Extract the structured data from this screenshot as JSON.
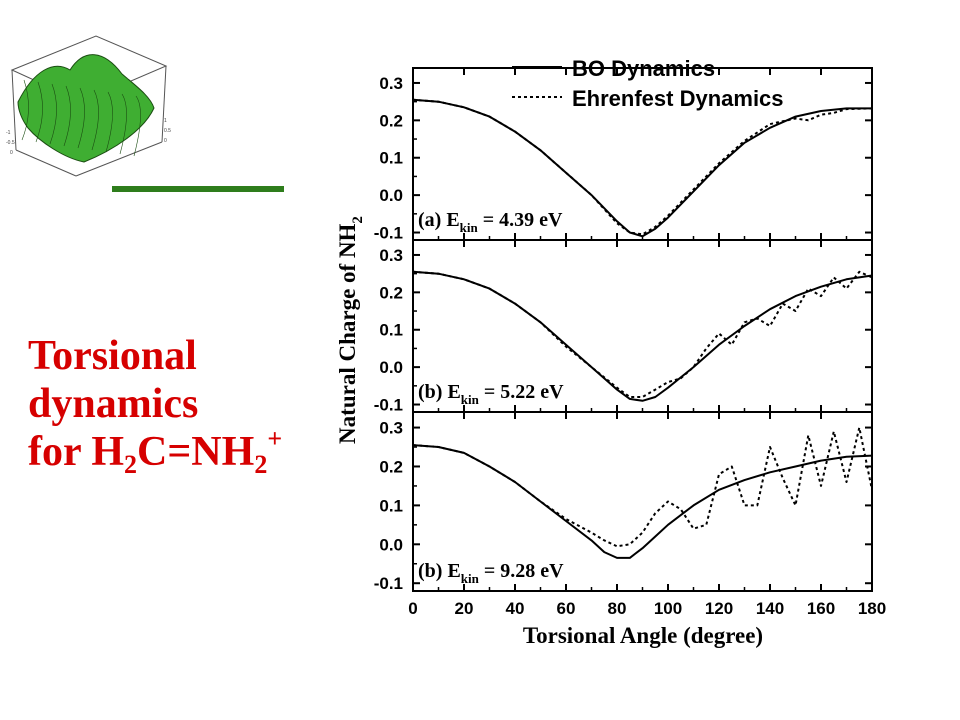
{
  "slide": {
    "title_line1": "Torsional",
    "title_line2": "dynamics",
    "title_line3_prefix": "for H",
    "title_sub1": "2",
    "title_mid": "C=NH",
    "title_sub2": "2",
    "title_sup": "+",
    "accent_color": "#d60000",
    "bar_color": "#2e7d1c",
    "surface_color": "#3fae32"
  },
  "chart_data": {
    "type": "line",
    "x_label": "Torsional Angle (degree)",
    "y_label_main": "Natural Charge of NH",
    "y_label_sub": "2",
    "x_ticks": [
      "0",
      "20",
      "40",
      "60",
      "80",
      "100",
      "120",
      "140",
      "160",
      "180"
    ],
    "y_ticks": [
      "0.3",
      "0.2",
      "0.1",
      "0.0",
      "-0.1"
    ],
    "xlim": [
      0,
      180
    ],
    "ylim": [
      -0.12,
      0.34
    ],
    "legend": {
      "position": "top",
      "entries": [
        {
          "label": "BO Dynamics",
          "style": "solid"
        },
        {
          "label": "Ehrenfest Dynamics",
          "style": "dotted"
        }
      ]
    },
    "panels": [
      {
        "label_prefix": "(a) E",
        "label_sub": "kin",
        "label_value": "= 4.39 eV",
        "series": [
          {
            "name": "BO Dynamics",
            "style": "solid",
            "x": [
              0,
              10,
              20,
              30,
              40,
              50,
              60,
              70,
              80,
              85,
              90,
              95,
              100,
              110,
              120,
              130,
              140,
              150,
              160,
              170,
              180
            ],
            "y": [
              0.255,
              0.25,
              0.235,
              0.21,
              0.17,
              0.12,
              0.06,
              0.0,
              -0.07,
              -0.1,
              -0.11,
              -0.09,
              -0.06,
              0.01,
              0.08,
              0.14,
              0.18,
              0.21,
              0.225,
              0.232,
              0.232
            ]
          },
          {
            "name": "Ehrenfest Dynamics",
            "style": "dotted",
            "x": [
              0,
              10,
              20,
              30,
              40,
              50,
              60,
              70,
              80,
              85,
              90,
              95,
              100,
              110,
              120,
              130,
              140,
              150,
              155,
              160,
              165,
              170,
              180
            ],
            "y": [
              0.255,
              0.25,
              0.235,
              0.21,
              0.17,
              0.12,
              0.06,
              0.0,
              -0.075,
              -0.1,
              -0.105,
              -0.085,
              -0.055,
              0.015,
              0.085,
              0.145,
              0.19,
              0.205,
              0.2,
              0.215,
              0.22,
              0.23,
              0.232
            ]
          }
        ]
      },
      {
        "label_prefix": "(b) E",
        "label_sub": "kin",
        "label_value": "= 5.22 eV",
        "series": [
          {
            "name": "BO Dynamics",
            "style": "solid",
            "x": [
              0,
              10,
              20,
              30,
              40,
              50,
              60,
              70,
              80,
              85,
              90,
              95,
              100,
              110,
              120,
              130,
              140,
              150,
              160,
              170,
              180
            ],
            "y": [
              0.255,
              0.25,
              0.235,
              0.21,
              0.17,
              0.12,
              0.06,
              0.0,
              -0.06,
              -0.085,
              -0.09,
              -0.08,
              -0.055,
              0.0,
              0.06,
              0.11,
              0.155,
              0.19,
              0.215,
              0.235,
              0.245
            ]
          },
          {
            "name": "Ehrenfest Dynamics",
            "style": "dotted",
            "x": [
              0,
              10,
              20,
              30,
              40,
              50,
              60,
              70,
              80,
              85,
              90,
              95,
              100,
              105,
              110,
              115,
              120,
              125,
              130,
              135,
              140,
              145,
              150,
              155,
              160,
              165,
              170,
              175,
              180
            ],
            "y": [
              0.255,
              0.25,
              0.235,
              0.21,
              0.17,
              0.12,
              0.055,
              0.0,
              -0.055,
              -0.08,
              -0.08,
              -0.06,
              -0.04,
              -0.03,
              0.0,
              0.05,
              0.09,
              0.06,
              0.12,
              0.13,
              0.11,
              0.17,
              0.15,
              0.21,
              0.19,
              0.24,
              0.21,
              0.255,
              0.24
            ]
          }
        ]
      },
      {
        "label_prefix": "(b) E",
        "label_sub": "kin",
        "label_value": "= 9.28 eV",
        "series": [
          {
            "name": "BO Dynamics",
            "style": "solid",
            "x": [
              0,
              10,
              20,
              30,
              40,
              50,
              60,
              70,
              75,
              80,
              85,
              90,
              95,
              100,
              110,
              120,
              130,
              140,
              150,
              160,
              170,
              180
            ],
            "y": [
              0.255,
              0.25,
              0.235,
              0.2,
              0.16,
              0.11,
              0.06,
              0.01,
              -0.02,
              -0.035,
              -0.035,
              -0.01,
              0.02,
              0.05,
              0.1,
              0.14,
              0.165,
              0.185,
              0.2,
              0.215,
              0.225,
              0.228
            ]
          },
          {
            "name": "Ehrenfest Dynamics",
            "style": "dotted",
            "x": [
              0,
              10,
              20,
              30,
              40,
              50,
              60,
              70,
              75,
              80,
              85,
              90,
              95,
              100,
              105,
              110,
              115,
              120,
              125,
              130,
              135,
              140,
              145,
              150,
              155,
              160,
              165,
              170,
              175,
              180
            ],
            "y": [
              0.255,
              0.25,
              0.235,
              0.2,
              0.16,
              0.11,
              0.065,
              0.03,
              0.01,
              -0.005,
              0.0,
              0.03,
              0.08,
              0.11,
              0.09,
              0.04,
              0.05,
              0.18,
              0.2,
              0.1,
              0.1,
              0.25,
              0.17,
              0.1,
              0.28,
              0.15,
              0.29,
              0.16,
              0.3,
              0.14
            ]
          }
        ]
      }
    ]
  }
}
